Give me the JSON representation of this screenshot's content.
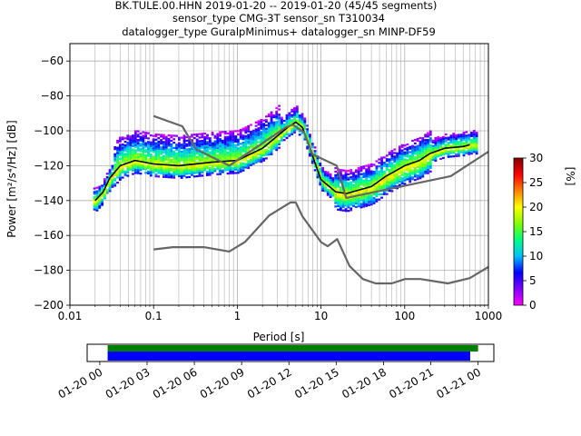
{
  "title": {
    "line1": "BK.TULE.00.HHN   2019-01-20 -- 2019-01-20  (45/45 segments)",
    "line2": "sensor_type CMG-3T sensor_sn T310034",
    "line3": "datalogger_type GuralpMinimus+ datalogger_sn MINP-DF59"
  },
  "chart_data": [
    {
      "type": "heatmap",
      "name": "probabilistic-psd",
      "xlabel": "Period [s]",
      "ylabel": "Power [m²/s⁴/Hz] [dB]",
      "xscale": "log",
      "xlim": [
        0.01,
        1000
      ],
      "ylim": [
        -200,
        -50
      ],
      "xticks": [
        0.01,
        0.1,
        1,
        10,
        100,
        1000
      ],
      "xtick_labels": [
        "0.01",
        "0.1",
        "1",
        "10",
        "100",
        "1000"
      ],
      "yticks": [
        -200,
        -180,
        -160,
        -140,
        -120,
        -100,
        -80,
        -60
      ],
      "ytick_labels": [
        "−200",
        "−180",
        "−160",
        "−140",
        "−120",
        "−100",
        "−80",
        "−60"
      ],
      "grid": true,
      "colorbar": {
        "label": "[%]",
        "range": [
          0,
          30
        ],
        "ticks": [
          0,
          5,
          10,
          15,
          20,
          25,
          30
        ],
        "tick_labels": [
          "0",
          "5",
          "10",
          "15",
          "20",
          "25",
          "30"
        ],
        "colormap": [
          "#ff00ff",
          "#8000ff",
          "#0000ff",
          "#00c0ff",
          "#00ff80",
          "#80ff00",
          "#ffff00",
          "#ff8000",
          "#ff0000",
          "#800000"
        ]
      },
      "series": [
        {
          "role": "mean",
          "color": "#000000",
          "x": [
            0.02,
            0.025,
            0.03,
            0.04,
            0.06,
            0.1,
            0.2,
            0.5,
            1,
            2,
            3,
            4,
            5,
            6,
            8,
            10,
            15,
            20,
            40,
            60,
            100,
            150,
            200,
            300,
            500,
            600
          ],
          "y": [
            -140,
            -135,
            -127,
            -120,
            -117,
            -119,
            -120,
            -118,
            -117,
            -110,
            -103,
            -98,
            -95,
            -98,
            -115,
            -128,
            -135,
            -136,
            -132,
            -126,
            -120,
            -117,
            -113,
            -110,
            -109,
            -108
          ]
        },
        {
          "role": "high-noise-model",
          "color": "#666666",
          "x": [
            0.1,
            0.22,
            0.32,
            0.8,
            3.8,
            4.6,
            6.3,
            7.9,
            15.4,
            20,
            354.8,
            1000
          ],
          "y": [
            -91.5,
            -97.4,
            -110.5,
            -120,
            -98,
            -96.5,
            -101,
            -113.5,
            -120,
            -138.5,
            -126,
            -112
          ]
        },
        {
          "role": "low-noise-model",
          "color": "#666666",
          "x": [
            0.1,
            0.17,
            0.4,
            0.8,
            1.24,
            2.4,
            4.3,
            5,
            6,
            10,
            12,
            15.6,
            21.9,
            31.6,
            45,
            70,
            101,
            154,
            328,
            600,
            1000
          ],
          "y": [
            -168,
            -166.7,
            -166.7,
            -169.2,
            -163.7,
            -148.6,
            -141.1,
            -141.1,
            -149,
            -163.8,
            -166.2,
            -162.1,
            -177.5,
            -185,
            -187.5,
            -187.5,
            -185,
            -185,
            -187.5,
            -184.5,
            -178
          ]
        }
      ]
    },
    {
      "type": "timeline",
      "name": "data-coverage",
      "tick_labels": [
        "01-20 00",
        "01-20 03",
        "01-20 06",
        "01-20 09",
        "01-20 12",
        "01-20 15",
        "01-20 18",
        "01-20 21",
        "01-21 00"
      ],
      "xlim_hours": [
        -0.8,
        25
      ],
      "bars": [
        {
          "role": "segments",
          "color": "#008000",
          "start_hours": 0.5,
          "end_hours": 24.0
        },
        {
          "role": "data",
          "color": "#0000ff",
          "start_hours": 0.5,
          "end_hours": 23.5
        }
      ]
    }
  ]
}
